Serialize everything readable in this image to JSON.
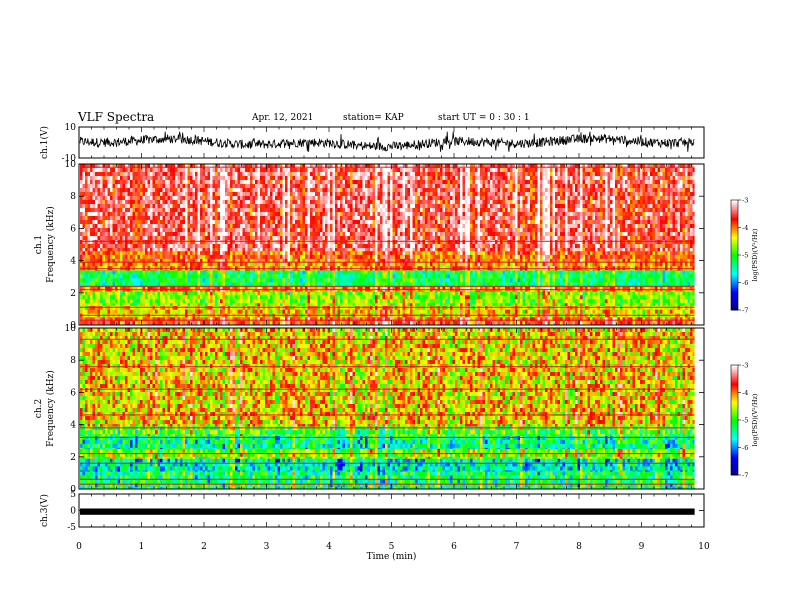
{
  "chart_data": {
    "type": "heatmap",
    "title": "VLF Spectra",
    "date": "Apr. 12, 2021",
    "station": "station= KAP",
    "start_ut": "start  UT =   0  : 30 : 1",
    "xlabel": "Time  (min)",
    "xlim": [
      0,
      10
    ],
    "x_ticks": [
      "0",
      "1",
      "2",
      "3",
      "4",
      "5",
      "6",
      "7",
      "8",
      "9",
      "10"
    ],
    "data_end_min": 9.85,
    "panels": [
      {
        "id": "ch1-waveform",
        "type": "line",
        "ylabel": "ch.1(V)",
        "ylim": [
          -10,
          10
        ],
        "y_ticks": [
          "10",
          "-10"
        ],
        "signal_range_v": [
          -6,
          7
        ]
      },
      {
        "id": "ch1-spectrogram",
        "type": "heatmap",
        "ylabel": "ch.1\nFrequency  (kHz)",
        "ylim": [
          0,
          10
        ],
        "y_ticks": [
          "0",
          "2",
          "4",
          "6",
          "8",
          "10"
        ],
        "bands_khz": [
          {
            "from": 0.0,
            "to": 0.5,
            "level": -3.7
          },
          {
            "from": 0.5,
            "to": 1.2,
            "level": -4.2
          },
          {
            "from": 1.2,
            "to": 2.1,
            "level": -4.6
          },
          {
            "from": 2.1,
            "to": 2.4,
            "level": -3.9
          },
          {
            "from": 2.4,
            "to": 3.4,
            "level": -5.1
          },
          {
            "from": 3.4,
            "to": 3.9,
            "level": -4.0
          },
          {
            "from": 3.9,
            "to": 4.6,
            "level": -3.8
          },
          {
            "from": 4.6,
            "to": 10.0,
            "level": -3.4
          }
        ],
        "lines_khz": [
          0.3,
          0.6,
          1.1,
          2.2,
          2.4,
          3.5,
          3.9,
          5.2,
          9.8
        ]
      },
      {
        "id": "ch2-spectrogram",
        "type": "heatmap",
        "ylabel": "ch.2\nFrequency  (kHz)",
        "ylim": [
          0,
          10
        ],
        "y_ticks": [
          "0",
          "2",
          "4",
          "6",
          "8",
          "10"
        ],
        "bands_khz": [
          {
            "from": 0.0,
            "to": 1.1,
            "level": -5.2
          },
          {
            "from": 1.1,
            "to": 1.9,
            "level": -5.5
          },
          {
            "from": 1.9,
            "to": 2.5,
            "level": -4.6
          },
          {
            "from": 2.5,
            "to": 3.3,
            "level": -5.3
          },
          {
            "from": 3.3,
            "to": 3.9,
            "level": -4.9
          },
          {
            "from": 3.9,
            "to": 10.0,
            "level": -4.2
          }
        ],
        "lines_khz": [
          0.3,
          0.6,
          1.6,
          2.2,
          3.2,
          3.8,
          4.6,
          6.2,
          7.6,
          9.3
        ]
      },
      {
        "id": "ch3-waveform",
        "type": "line",
        "ylabel": "ch.3(V)",
        "ylim": [
          -5,
          5
        ],
        "y_ticks": [
          "5",
          "0",
          "-5"
        ],
        "signal_range_v": [
          -0.7,
          0.0
        ]
      }
    ],
    "colorbar": {
      "label": "log(PSD)(V²/Hz)",
      "range": [
        -7,
        -3
      ],
      "ticks": [
        "-3",
        "-4",
        "-5",
        "-6",
        "-7"
      ],
      "colors": [
        "#000080",
        "#0000ff",
        "#00ffff",
        "#00ff00",
        "#ffff00",
        "#ff0000",
        "#ffffff"
      ]
    }
  }
}
